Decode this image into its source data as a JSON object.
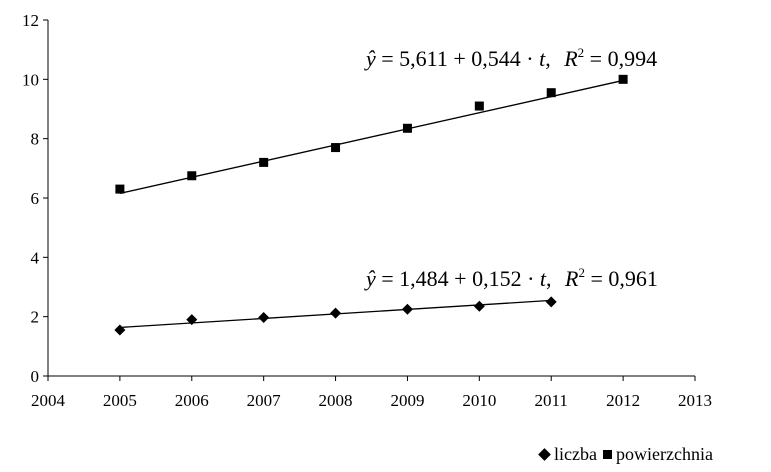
{
  "chart_data": {
    "type": "scatter",
    "title": "",
    "xlabel": "",
    "ylabel": "",
    "xlim": [
      2004,
      2013
    ],
    "ylim": [
      0,
      12
    ],
    "xticks": [
      2004,
      2005,
      2006,
      2007,
      2008,
      2009,
      2010,
      2011,
      2012,
      2013
    ],
    "yticks": [
      0,
      2,
      4,
      6,
      8,
      10,
      12
    ],
    "grid": false,
    "legend_position": "bottom-right",
    "series": [
      {
        "name": "liczba",
        "marker": "diamond",
        "color": "#000000",
        "x": [
          2005,
          2006,
          2007,
          2008,
          2009,
          2010,
          2011
        ],
        "y": [
          1.55,
          1.9,
          1.97,
          2.12,
          2.25,
          2.35,
          2.5
        ],
        "trendline": {
          "intercept": 1.484,
          "slope": 0.152
        },
        "equation": {
          "prefix": "ŷ",
          "main": " = 1,484 + 0,152 · ",
          "t": "t",
          "r2_label": "R",
          "r2_sup": "2",
          "r2_value": " = 0,961"
        }
      },
      {
        "name": "powierzchnia",
        "marker": "square",
        "color": "#000000",
        "x": [
          2005,
          2006,
          2007,
          2008,
          2009,
          2010,
          2011,
          2012
        ],
        "y": [
          6.3,
          6.75,
          7.2,
          7.7,
          8.35,
          9.1,
          9.55,
          10.0
        ],
        "trendline": {
          "intercept": 5.611,
          "slope": 0.544
        },
        "equation": {
          "prefix": "ŷ",
          "main": " = 5,611 + 0,544 · ",
          "t": "t",
          "r2_label": "R",
          "r2_sup": "2",
          "r2_value": " = 0,994"
        }
      }
    ]
  }
}
